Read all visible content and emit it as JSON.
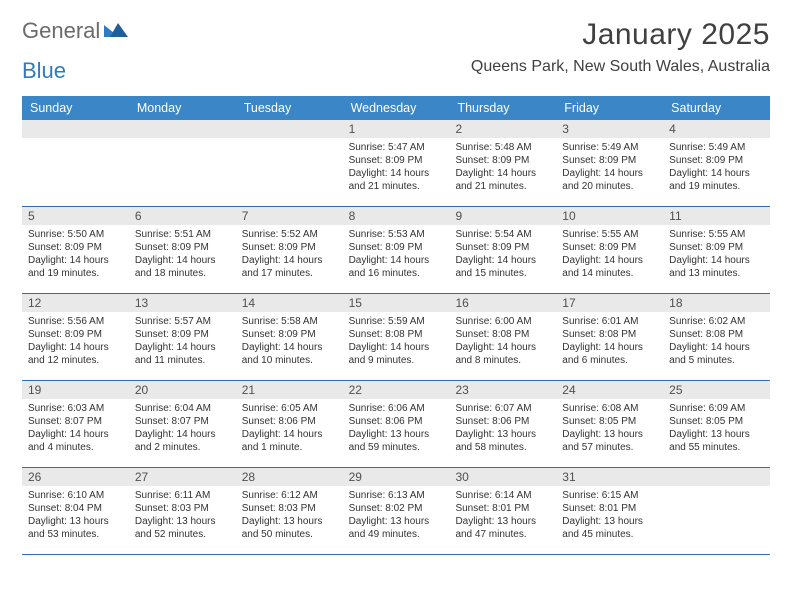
{
  "logo": {
    "text1": "General",
    "text2": "Blue"
  },
  "title": "January 2025",
  "location": "Queens Park, New South Wales, Australia",
  "colors": {
    "header_bg": "#3b86c6",
    "header_text": "#ffffff",
    "daynum_bg": "#e9e9e9",
    "rule": "#2f6ea8",
    "body_text": "#333333",
    "title_text": "#404040",
    "logo_gray": "#6b6b6b",
    "logo_blue": "#2f7bbf"
  },
  "typography": {
    "title_fontsize": 30,
    "location_fontsize": 16,
    "weekday_fontsize": 12.5,
    "daynum_fontsize": 12,
    "body_fontsize": 10
  },
  "weekdays": [
    "Sunday",
    "Monday",
    "Tuesday",
    "Wednesday",
    "Thursday",
    "Friday",
    "Saturday"
  ],
  "calendar": {
    "type": "table",
    "columns": 7,
    "rows": 5,
    "first_weekday_index": 3,
    "days": [
      {
        "n": 1,
        "sunrise": "5:47 AM",
        "sunset": "8:09 PM",
        "daylight": "14 hours and 21 minutes."
      },
      {
        "n": 2,
        "sunrise": "5:48 AM",
        "sunset": "8:09 PM",
        "daylight": "14 hours and 21 minutes."
      },
      {
        "n": 3,
        "sunrise": "5:49 AM",
        "sunset": "8:09 PM",
        "daylight": "14 hours and 20 minutes."
      },
      {
        "n": 4,
        "sunrise": "5:49 AM",
        "sunset": "8:09 PM",
        "daylight": "14 hours and 19 minutes."
      },
      {
        "n": 5,
        "sunrise": "5:50 AM",
        "sunset": "8:09 PM",
        "daylight": "14 hours and 19 minutes."
      },
      {
        "n": 6,
        "sunrise": "5:51 AM",
        "sunset": "8:09 PM",
        "daylight": "14 hours and 18 minutes."
      },
      {
        "n": 7,
        "sunrise": "5:52 AM",
        "sunset": "8:09 PM",
        "daylight": "14 hours and 17 minutes."
      },
      {
        "n": 8,
        "sunrise": "5:53 AM",
        "sunset": "8:09 PM",
        "daylight": "14 hours and 16 minutes."
      },
      {
        "n": 9,
        "sunrise": "5:54 AM",
        "sunset": "8:09 PM",
        "daylight": "14 hours and 15 minutes."
      },
      {
        "n": 10,
        "sunrise": "5:55 AM",
        "sunset": "8:09 PM",
        "daylight": "14 hours and 14 minutes."
      },
      {
        "n": 11,
        "sunrise": "5:55 AM",
        "sunset": "8:09 PM",
        "daylight": "14 hours and 13 minutes."
      },
      {
        "n": 12,
        "sunrise": "5:56 AM",
        "sunset": "8:09 PM",
        "daylight": "14 hours and 12 minutes."
      },
      {
        "n": 13,
        "sunrise": "5:57 AM",
        "sunset": "8:09 PM",
        "daylight": "14 hours and 11 minutes."
      },
      {
        "n": 14,
        "sunrise": "5:58 AM",
        "sunset": "8:09 PM",
        "daylight": "14 hours and 10 minutes."
      },
      {
        "n": 15,
        "sunrise": "5:59 AM",
        "sunset": "8:08 PM",
        "daylight": "14 hours and 9 minutes."
      },
      {
        "n": 16,
        "sunrise": "6:00 AM",
        "sunset": "8:08 PM",
        "daylight": "14 hours and 8 minutes."
      },
      {
        "n": 17,
        "sunrise": "6:01 AM",
        "sunset": "8:08 PM",
        "daylight": "14 hours and 6 minutes."
      },
      {
        "n": 18,
        "sunrise": "6:02 AM",
        "sunset": "8:08 PM",
        "daylight": "14 hours and 5 minutes."
      },
      {
        "n": 19,
        "sunrise": "6:03 AM",
        "sunset": "8:07 PM",
        "daylight": "14 hours and 4 minutes."
      },
      {
        "n": 20,
        "sunrise": "6:04 AM",
        "sunset": "8:07 PM",
        "daylight": "14 hours and 2 minutes."
      },
      {
        "n": 21,
        "sunrise": "6:05 AM",
        "sunset": "8:06 PM",
        "daylight": "14 hours and 1 minute."
      },
      {
        "n": 22,
        "sunrise": "6:06 AM",
        "sunset": "8:06 PM",
        "daylight": "13 hours and 59 minutes."
      },
      {
        "n": 23,
        "sunrise": "6:07 AM",
        "sunset": "8:06 PM",
        "daylight": "13 hours and 58 minutes."
      },
      {
        "n": 24,
        "sunrise": "6:08 AM",
        "sunset": "8:05 PM",
        "daylight": "13 hours and 57 minutes."
      },
      {
        "n": 25,
        "sunrise": "6:09 AM",
        "sunset": "8:05 PM",
        "daylight": "13 hours and 55 minutes."
      },
      {
        "n": 26,
        "sunrise": "6:10 AM",
        "sunset": "8:04 PM",
        "daylight": "13 hours and 53 minutes."
      },
      {
        "n": 27,
        "sunrise": "6:11 AM",
        "sunset": "8:03 PM",
        "daylight": "13 hours and 52 minutes."
      },
      {
        "n": 28,
        "sunrise": "6:12 AM",
        "sunset": "8:03 PM",
        "daylight": "13 hours and 50 minutes."
      },
      {
        "n": 29,
        "sunrise": "6:13 AM",
        "sunset": "8:02 PM",
        "daylight": "13 hours and 49 minutes."
      },
      {
        "n": 30,
        "sunrise": "6:14 AM",
        "sunset": "8:01 PM",
        "daylight": "13 hours and 47 minutes."
      },
      {
        "n": 31,
        "sunrise": "6:15 AM",
        "sunset": "8:01 PM",
        "daylight": "13 hours and 45 minutes."
      }
    ],
    "labels": {
      "sunrise": "Sunrise:",
      "sunset": "Sunset:",
      "daylight": "Daylight:"
    }
  }
}
